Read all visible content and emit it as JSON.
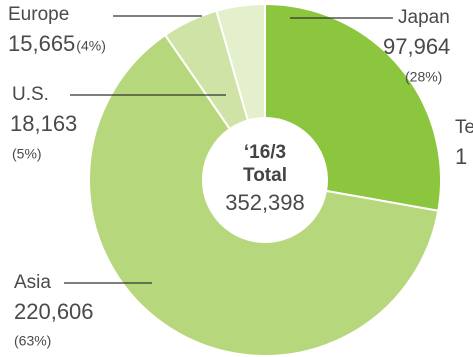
{
  "chart_data": {
    "type": "pie",
    "donut": true,
    "categories": [
      "Japan",
      "Asia",
      "U.S.",
      "Europe"
    ],
    "values": [
      97964,
      220606,
      18163,
      15665
    ],
    "value_labels": [
      "97,964",
      "220,606",
      "18,163",
      "15,665"
    ],
    "percent_labels": [
      "(28%)",
      "(63%)",
      "(5%)",
      "(4%)"
    ],
    "colors": [
      "#8cc63e",
      "#b7d77c",
      "#cfe3a6",
      "#e4efcb"
    ],
    "center_texts": [
      "‘16/3",
      "Total"
    ],
    "total": 352398,
    "total_label": "352,398",
    "clipped_labels": [
      "Te",
      "1"
    ]
  }
}
